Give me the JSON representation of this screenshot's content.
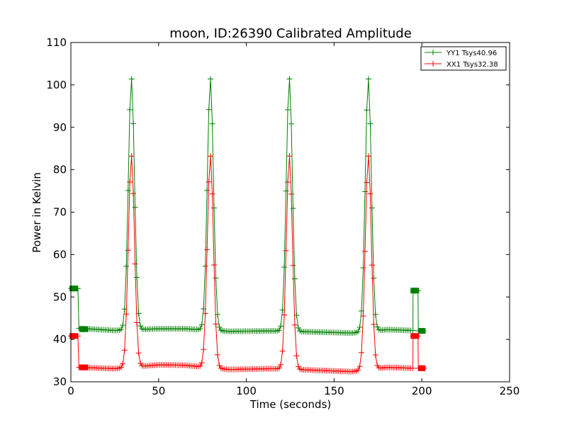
{
  "chart_data": {
    "type": "line",
    "title": "moon, ID:26390 Calibrated Amplitude",
    "xlabel": "Time (seconds)",
    "ylabel": "Power in Kelvin",
    "xlim": [
      0,
      250
    ],
    "ylim": [
      30,
      110
    ],
    "xticks": [
      "0",
      "50",
      "100",
      "150",
      "200",
      "250"
    ],
    "yticks": [
      "30",
      "40",
      "50",
      "60",
      "70",
      "80",
      "90",
      "100",
      "110"
    ],
    "grid": false,
    "legend_position": "top-right",
    "peaks": [
      34.5,
      79.5,
      124.5,
      169.5
    ],
    "series": [
      {
        "name": "YY1 Tsys40.96",
        "color": "#008000",
        "marker": "plus",
        "peak_height": 101.5,
        "cal_high": 52.0,
        "cal_high_end": 51.5,
        "baseline_points": [
          [
            5,
            42.6
          ],
          [
            25,
            42.1
          ],
          [
            50,
            42.5
          ],
          [
            65,
            42.5
          ],
          [
            90,
            41.9
          ],
          [
            115,
            42.0
          ],
          [
            135,
            41.8
          ],
          [
            160,
            41.5
          ],
          [
            180,
            42.3
          ],
          [
            195,
            42.1
          ]
        ],
        "end_level": 42.0,
        "square_markers": [
          [
            0.8,
            52.0
          ],
          [
            2.4,
            52.0
          ],
          [
            6.5,
            42.4
          ],
          [
            8.3,
            42.4
          ],
          [
            195.2,
            51.5
          ],
          [
            196.8,
            51.5
          ],
          [
            199.5,
            42.0
          ],
          [
            200.5,
            42.0
          ]
        ]
      },
      {
        "name": "XX1 Tsys32.38",
        "color": "#ff0000",
        "marker": "plus",
        "peak_height": 83.3,
        "cal_high": 40.8,
        "cal_high_end": 40.8,
        "baseline_points": [
          [
            5,
            33.4
          ],
          [
            25,
            33.1
          ],
          [
            50,
            34.0
          ],
          [
            65,
            33.9
          ],
          [
            90,
            32.9
          ],
          [
            115,
            33.1
          ],
          [
            135,
            32.8
          ],
          [
            160,
            32.4
          ],
          [
            180,
            33.4
          ],
          [
            195,
            33.2
          ]
        ],
        "end_level": 33.2,
        "square_markers": [
          [
            0.8,
            40.8
          ],
          [
            2.4,
            40.8
          ],
          [
            6.5,
            33.4
          ],
          [
            8.3,
            33.4
          ],
          [
            195.2,
            40.8
          ],
          [
            196.8,
            40.8
          ],
          [
            199.5,
            33.2
          ],
          [
            200.5,
            33.2
          ]
        ]
      }
    ]
  }
}
